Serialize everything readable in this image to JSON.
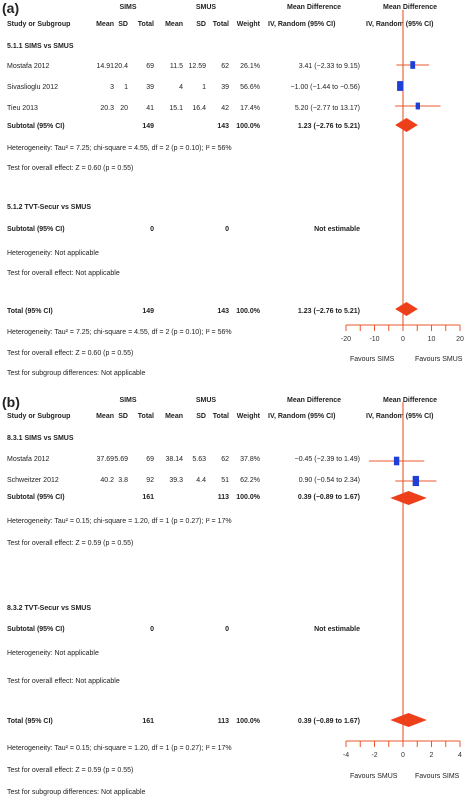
{
  "panels": [
    {
      "label": "(a)",
      "headers": {
        "study": "Study or Subgroup",
        "group1": "SIMS",
        "group2": "SMUS",
        "mean": "Mean",
        "sd": "SD",
        "total": "Total",
        "weight": "Weight",
        "md": "Mean Difference",
        "md_method": "IV, Random (95% CI)",
        "plot_md": "Mean Difference",
        "plot_method": "IV, Random (95% CI)"
      },
      "subgroups": [
        {
          "title": "5.1.1 SIMS vs SMUS",
          "studies": [
            {
              "name": "Mostafa 2012",
              "m1": "14.91",
              "sd1": "20.4",
              "n1": "69",
              "m2": "11.5",
              "sd2": "12.59",
              "n2": "62",
              "weight": "26.1%",
              "ci": "3.41 (−2.33 to 9.15)"
            },
            {
              "name": "Sivaslioglu 2012",
              "m1": "3",
              "sd1": "1",
              "n1": "39",
              "m2": "4",
              "sd2": "1",
              "n2": "39",
              "weight": "56.6%",
              "ci": "−1.00 (−1.44 to −0.56)"
            },
            {
              "name": "Tieu 2013",
              "m1": "20.3",
              "sd1": "20",
              "n1": "41",
              "m2": "15.1",
              "sd2": "16.4",
              "n2": "42",
              "weight": "17.4%",
              "ci": "5.20 (−2.77 to 13.17)"
            }
          ],
          "subtotal": {
            "label": "Subtotal (95% CI)",
            "n1": "149",
            "n2": "143",
            "weight": "100.0%",
            "ci": "1.23 (−2.76 to 5.21)"
          },
          "heterogeneity": "Heterogeneity: Tau² = 7.25; chi-square = 4.55, df = 2 (p = 0.10); I² = 56%",
          "overall_effect": "Test for overall effect: Z = 0.60 (p = 0.55)"
        },
        {
          "title": "5.1.2 TVT-Secur vs SMUS",
          "studies": [],
          "subtotal": {
            "label": "Subtotal (95% CI)",
            "n1": "0",
            "n2": "0",
            "weight": "",
            "ci": "Not estimable"
          },
          "heterogeneity": "Heterogeneity: Not applicable",
          "overall_effect": "Test for overall effect: Not applicable"
        }
      ],
      "total": {
        "label": "Total (95% CI)",
        "n1": "149",
        "n2": "143",
        "weight": "100.0%",
        "ci": "1.23 (−2.76 to 5.21)"
      },
      "total_heterogeneity": "Heterogeneity: Tau² = 7.25; chi-square = 4.55, df = 2 (p = 0.10); I² = 56%",
      "total_effect": "Test for overall effect: Z = 0.60 (p = 0.55)",
      "subgroup_diff": "Test for subgroup differences: Not applicable",
      "favours_left": "Favours SIMS",
      "favours_right": "Favours SMUS"
    },
    {
      "label": "(b)",
      "headers": {
        "study": "Study or Subgroup",
        "group1": "SIMS",
        "group2": "SMUS",
        "mean": "Mean",
        "sd": "SD",
        "total": "Total",
        "weight": "Weight",
        "md": "Mean Difference",
        "md_method": "IV, Random (95% CI)",
        "plot_md": "Mean Difference",
        "plot_method": "IV, Random (95% CI)"
      },
      "subgroups": [
        {
          "title": "8.3.1 SIMS vs SMUS",
          "studies": [
            {
              "name": "Mostafa 2012",
              "m1": "37.69",
              "sd1": "5.69",
              "n1": "69",
              "m2": "38.14",
              "sd2": "5.63",
              "n2": "62",
              "weight": "37.8%",
              "ci": "−0.45 (−2.39 to 1.49)"
            },
            {
              "name": "Schweitzer 2012",
              "m1": "40.2",
              "sd1": "3.8",
              "n1": "92",
              "m2": "39.3",
              "sd2": "4.4",
              "n2": "51",
              "weight": "62.2%",
              "ci": "0.90 (−0.54 to 2.34)"
            }
          ],
          "subtotal": {
            "label": "Subtotal (95% CI)",
            "n1": "161",
            "n2": "113",
            "weight": "100.0%",
            "ci": "0.39 (−0.89 to 1.67)"
          },
          "heterogeneity": "Heterogeneity: Tau² = 0.15; chi-square = 1.20, df = 1 (p = 0.27); I² = 17%",
          "overall_effect": "Test for overall effect: Z = 0.59 (p = 0.55)"
        },
        {
          "title": "8.3.2 TVT-Secur vs SMUS",
          "studies": [],
          "subtotal": {
            "label": "Subtotal (95% CI)",
            "n1": "0",
            "n2": "0",
            "weight": "",
            "ci": "Not estimable"
          },
          "heterogeneity": "Heterogeneity: Not applicable",
          "overall_effect": "Test for overall effect: Not applicable"
        }
      ],
      "total": {
        "label": "Total (95% CI)",
        "n1": "161",
        "n2": "113",
        "weight": "100.0%",
        "ci": "0.39 (−0.89 to 1.67)"
      },
      "total_heterogeneity": "Heterogeneity: Tau² = 0.15; chi-square = 1.20, df = 1 (p = 0.27); I² = 17%",
      "total_effect": "Test for overall effect: Z = 0.59 (p = 0.55)",
      "subgroup_diff": "Test for subgroup differences: Not applicable",
      "favours_left": "Favours SMUS",
      "favours_right": "Favours SIMS"
    }
  ],
  "chart_data": [
    {
      "type": "forest",
      "panel": "(a)",
      "studies": [
        {
          "name": "Mostafa 2012",
          "md": 3.41,
          "lo": -2.33,
          "hi": 9.15,
          "weight": 26.1
        },
        {
          "name": "Sivaslioglu 2012",
          "md": -1.0,
          "lo": -1.44,
          "hi": -0.56,
          "weight": 56.6
        },
        {
          "name": "Tieu 2013",
          "md": 5.2,
          "lo": -2.77,
          "hi": 13.17,
          "weight": 17.4
        }
      ],
      "subtotal": {
        "md": 1.23,
        "lo": -2.76,
        "hi": 5.21
      },
      "total": {
        "md": 1.23,
        "lo": -2.76,
        "hi": 5.21
      },
      "xlim": [
        -20,
        20
      ],
      "xticks": [
        -20,
        -10,
        0,
        10,
        20
      ],
      "colors": {
        "axis": "#e8582c",
        "box": "#1f3fd6",
        "ci": "#e8582c",
        "diamond": "#ee3f1b"
      }
    },
    {
      "type": "forest",
      "panel": "(b)",
      "studies": [
        {
          "name": "Mostafa 2012",
          "md": -0.45,
          "lo": -2.39,
          "hi": 1.49,
          "weight": 37.8
        },
        {
          "name": "Schweitzer 2012",
          "md": 0.9,
          "lo": -0.54,
          "hi": 2.34,
          "weight": 62.2
        }
      ],
      "subtotal": {
        "md": 0.39,
        "lo": -0.89,
        "hi": 1.67
      },
      "total": {
        "md": 0.39,
        "lo": -0.89,
        "hi": 1.67
      },
      "xlim": [
        -4,
        4
      ],
      "xticks": [
        -4,
        -2,
        0,
        2,
        4
      ],
      "colors": {
        "axis": "#e8582c",
        "box": "#1f3fd6",
        "ci": "#e8582c",
        "diamond": "#ee3f1b"
      }
    }
  ]
}
